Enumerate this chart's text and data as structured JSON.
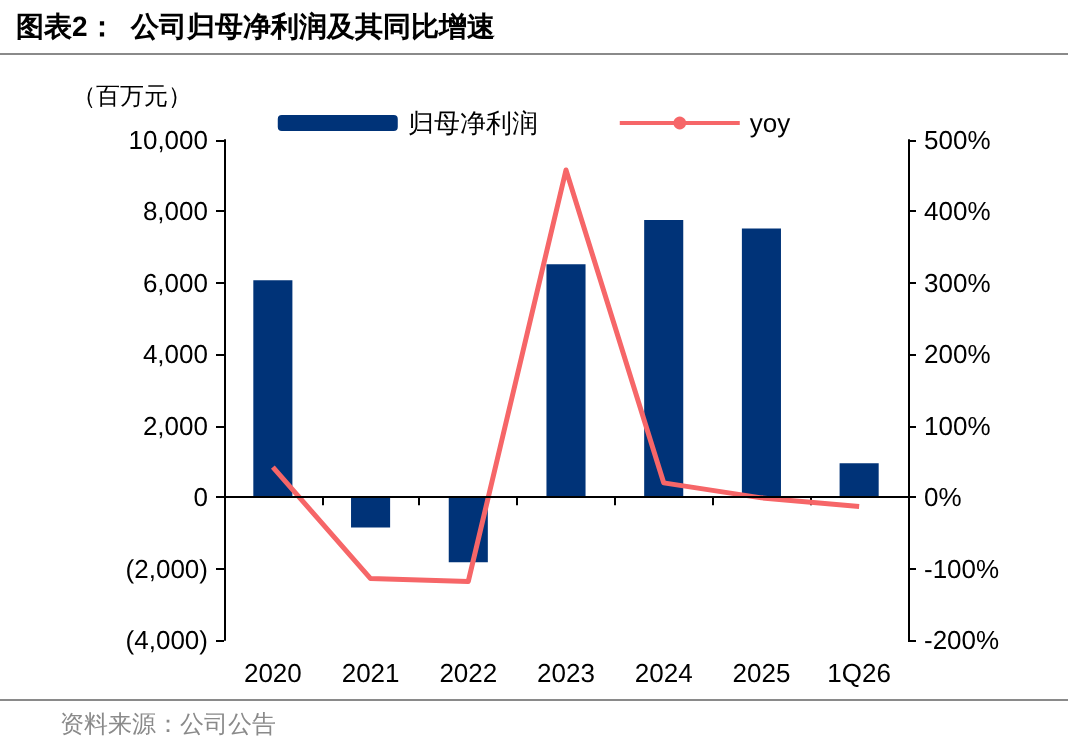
{
  "chart_data": {
    "type": "bar",
    "title": "图表2：  公司归母净利润及其同比增速",
    "ylabel": "（百万元）",
    "categories": [
      "2020",
      "2021",
      "2022",
      "2023",
      "2024",
      "2025",
      "1Q26"
    ],
    "series": [
      {
        "name": "归母净利润",
        "color": "#003378",
        "values": [
          6070,
          -850,
          -1820,
          6520,
          7760,
          7520,
          950
        ]
      },
      {
        "name": "yoy",
        "type": "line",
        "axis": "y2",
        "color": "#f66668",
        "marker": "none",
        "values": [
          42,
          -114,
          -118,
          458,
          20,
          -1,
          -13
        ]
      }
    ],
    "ylim": [
      -4000,
      10000
    ],
    "yticks": [
      {
        "value": -4000,
        "label": "(4,000)"
      },
      {
        "value": -2000,
        "label": "(2,000)"
      },
      0,
      {
        "value": 2000,
        "label": "2,000"
      },
      {
        "value": 4000,
        "label": "4,000"
      },
      {
        "value": 6000,
        "label": "6,000"
      },
      {
        "value": 8000,
        "label": "8,000"
      },
      {
        "value": 10000,
        "label": "10,000"
      }
    ],
    "y2lim": [
      -200,
      500
    ],
    "y2ticks": [
      {
        "value": -200,
        "label": "-200%"
      },
      {
        "value": -100,
        "label": "-100%"
      },
      {
        "value": 0,
        "label": "0%"
      },
      {
        "value": 100,
        "label": "100%"
      },
      {
        "value": 200,
        "label": "200%"
      },
      {
        "value": 300,
        "label": "300%"
      },
      {
        "value": 400,
        "label": "400%"
      },
      {
        "value": 500,
        "label": "500%"
      }
    ],
    "ref_lines": [
      {
        "axis": "y",
        "value": 0
      }
    ],
    "grid": false,
    "legend": "top",
    "annotations": [
      "资料来源：公司公告"
    ]
  }
}
